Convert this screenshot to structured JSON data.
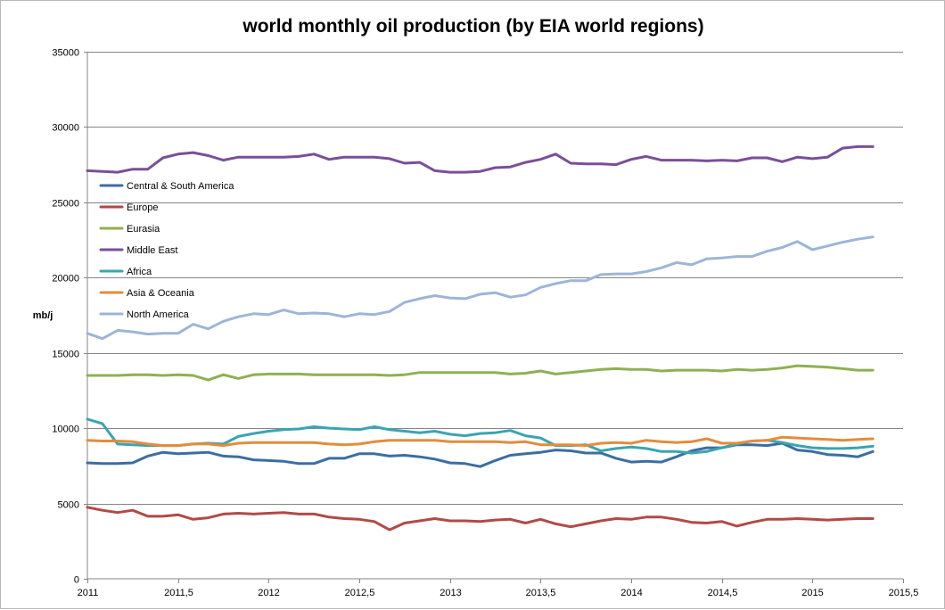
{
  "chart_data": {
    "type": "line",
    "title": "world monthly oil production (by EIA world regions)",
    "xlabel": "",
    "ylabel": "mb/j",
    "xlim": [
      2011,
      2015.5
    ],
    "ylim": [
      0,
      35000
    ],
    "grid": "horizontal",
    "legend_position": "left, inside plot area",
    "x_tick_labels": [
      "2011",
      "2011,5",
      "2012",
      "2012,5",
      "2013",
      "2013,5",
      "2014",
      "2014,5",
      "2015",
      "2015,5"
    ],
    "y_tick_labels": [
      "0",
      "5000",
      "10000",
      "15000",
      "20000",
      "25000",
      "30000",
      "35000"
    ],
    "x_start": 2011,
    "x_step": 0.0833333,
    "series": [
      {
        "name": "Central & South America",
        "color": "#3b6ea3",
        "values": [
          7700,
          7650,
          7650,
          7700,
          8150,
          8400,
          8300,
          8350,
          8400,
          8150,
          8100,
          7900,
          7850,
          7800,
          7650,
          7650,
          8000,
          8000,
          8300,
          8300,
          8150,
          8200,
          8100,
          7950,
          7700,
          7650,
          7450,
          7850,
          8200,
          8300,
          8400,
          8550,
          8500,
          8350,
          8350,
          8000,
          7750,
          7800,
          7750,
          8100,
          8500,
          8700,
          8700,
          8900,
          8900,
          8850,
          9000,
          8550,
          8450,
          8250,
          8200,
          8100,
          8450
        ]
      },
      {
        "name": "Europe",
        "color": "#b14a47",
        "values": [
          4750,
          4550,
          4400,
          4550,
          4150,
          4150,
          4250,
          3950,
          4050,
          4300,
          4350,
          4300,
          4350,
          4400,
          4300,
          4300,
          4100,
          4000,
          3950,
          3800,
          3250,
          3700,
          3850,
          4000,
          3850,
          3850,
          3800,
          3900,
          3950,
          3700,
          3950,
          3650,
          3450,
          3650,
          3850,
          4000,
          3950,
          4100,
          4100,
          3950,
          3750,
          3700,
          3800,
          3500,
          3750,
          3950,
          3950,
          4000,
          3950,
          3900,
          3950,
          4000,
          4000
        ]
      },
      {
        "name": "Eurasia",
        "color": "#8fb052",
        "values": [
          13500,
          13500,
          13500,
          13550,
          13550,
          13500,
          13550,
          13500,
          13200,
          13550,
          13300,
          13550,
          13600,
          13600,
          13600,
          13550,
          13550,
          13550,
          13550,
          13550,
          13500,
          13550,
          13700,
          13700,
          13700,
          13700,
          13700,
          13700,
          13600,
          13650,
          13800,
          13600,
          13700,
          13800,
          13900,
          13950,
          13900,
          13900,
          13800,
          13850,
          13850,
          13850,
          13800,
          13900,
          13850,
          13900,
          14000,
          14150,
          14100,
          14050,
          13950,
          13850,
          13850
        ]
      },
      {
        "name": "Middle East",
        "color": "#7a4f9a",
        "values": [
          27100,
          27050,
          27000,
          27200,
          27200,
          27950,
          28200,
          28300,
          28100,
          27800,
          28000,
          28000,
          28000,
          28000,
          28050,
          28200,
          27850,
          28000,
          28000,
          28000,
          27900,
          27600,
          27650,
          27100,
          27000,
          27000,
          27050,
          27300,
          27350,
          27650,
          27850,
          28200,
          27600,
          27550,
          27550,
          27500,
          27850,
          28050,
          27800,
          27800,
          27800,
          27750,
          27800,
          27750,
          27950,
          27950,
          27700,
          28000,
          27900,
          28000,
          28600,
          28700,
          28700
        ]
      },
      {
        "name": "Africa",
        "color": "#3aa5b0",
        "values": [
          10600,
          10300,
          8950,
          8900,
          8850,
          8850,
          8850,
          8950,
          9000,
          8950,
          9450,
          9650,
          9800,
          9900,
          9950,
          10100,
          10000,
          9950,
          9900,
          10100,
          9900,
          9800,
          9700,
          9800,
          9600,
          9500,
          9650,
          9700,
          9850,
          9500,
          9350,
          8850,
          8850,
          8900,
          8500,
          8650,
          8750,
          8650,
          8450,
          8450,
          8350,
          8450,
          8700,
          8950,
          9150,
          9200,
          9050,
          8850,
          8700,
          8650,
          8650,
          8700,
          8800
        ]
      },
      {
        "name": "Asia & Oceania",
        "color": "#e48c3c",
        "values": [
          9200,
          9150,
          9150,
          9100,
          8950,
          8850,
          8850,
          8950,
          8950,
          8850,
          9000,
          9050,
          9050,
          9050,
          9050,
          9050,
          8950,
          8900,
          8950,
          9100,
          9200,
          9200,
          9200,
          9200,
          9100,
          9100,
          9100,
          9100,
          9050,
          9100,
          8900,
          8900,
          8900,
          8850,
          9000,
          9050,
          9000,
          9200,
          9100,
          9050,
          9100,
          9300,
          9000,
          9000,
          9150,
          9200,
          9400,
          9350,
          9300,
          9250,
          9200,
          9250,
          9300
        ]
      },
      {
        "name": "North America",
        "color": "#9db5d8",
        "values": [
          16300,
          15950,
          16500,
          16400,
          16250,
          16300,
          16300,
          16900,
          16600,
          17100,
          17400,
          17600,
          17550,
          17850,
          17600,
          17650,
          17600,
          17400,
          17600,
          17550,
          17750,
          18350,
          18600,
          18800,
          18650,
          18600,
          18900,
          19000,
          18700,
          18850,
          19350,
          19600,
          19800,
          19800,
          20200,
          20250,
          20250,
          20400,
          20650,
          21000,
          20850,
          21250,
          21300,
          21400,
          21400,
          21750,
          22000,
          22400,
          21850,
          22100,
          22350,
          22550,
          22700
        ]
      }
    ]
  }
}
